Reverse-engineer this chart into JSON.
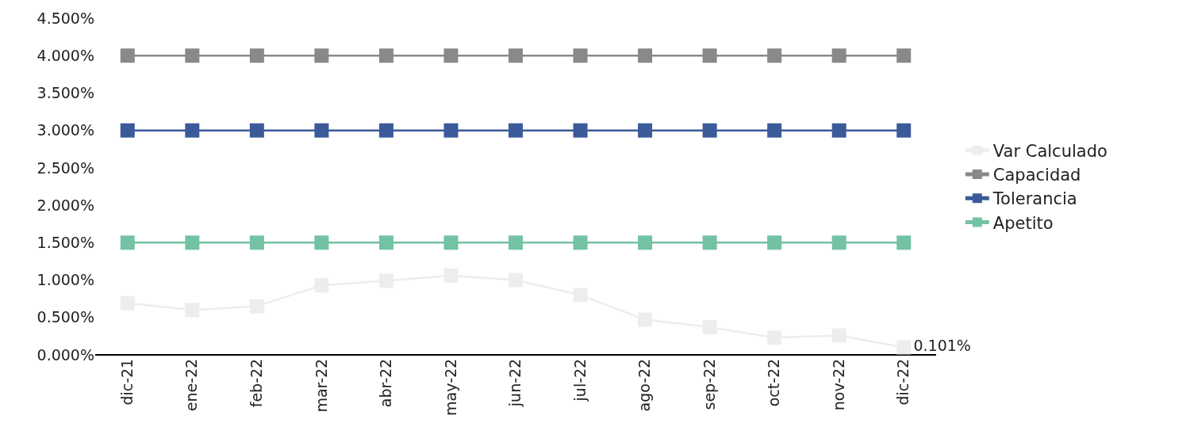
{
  "chart_data": {
    "type": "line",
    "categories": [
      "dic-21",
      "ene-22",
      "feb-22",
      "mar-22",
      "abr-22",
      "may-22",
      "jun-22",
      "jul-22",
      "ago-22",
      "sep-22",
      "oct-22",
      "nov-22",
      "dic-22"
    ],
    "series": [
      {
        "name": "Var Calculado",
        "color": "#ededed",
        "values": [
          0.69,
          0.6,
          0.65,
          0.93,
          0.99,
          1.06,
          1.0,
          0.8,
          0.47,
          0.37,
          0.23,
          0.26,
          0.101
        ],
        "value_labels": [
          null,
          null,
          null,
          null,
          null,
          null,
          null,
          null,
          null,
          null,
          null,
          null,
          "0.101%"
        ]
      },
      {
        "name": "Capacidad",
        "color": "#898989",
        "values": [
          4,
          4,
          4,
          4,
          4,
          4,
          4,
          4,
          4,
          4,
          4,
          4,
          4
        ]
      },
      {
        "name": "Tolerancia",
        "color": "#3b5a9a",
        "values": [
          3,
          3,
          3,
          3,
          3,
          3,
          3,
          3,
          3,
          3,
          3,
          3,
          3
        ]
      },
      {
        "name": "Apetito",
        "color": "#72c2a3",
        "values": [
          1.5,
          1.5,
          1.5,
          1.5,
          1.5,
          1.5,
          1.5,
          1.5,
          1.5,
          1.5,
          1.5,
          1.5,
          1.5
        ]
      }
    ],
    "ylim": [
      0,
      4.5
    ],
    "yticks": [
      {
        "value": 0,
        "label": "0.000%"
      },
      {
        "value": 0.5,
        "label": "0.500%"
      },
      {
        "value": 1,
        "label": "1.000%"
      },
      {
        "value": 1.5,
        "label": "1.500%"
      },
      {
        "value": 2,
        "label": "2.000%"
      },
      {
        "value": 2.5,
        "label": "2.500%"
      },
      {
        "value": 3,
        "label": "3.000%"
      },
      {
        "value": 3.5,
        "label": "3.500%"
      },
      {
        "value": 4,
        "label": "4.000%"
      },
      {
        "value": 4.5,
        "label": "4.500%"
      }
    ],
    "legend": "right",
    "marker": "square",
    "line_style": "solid"
  }
}
